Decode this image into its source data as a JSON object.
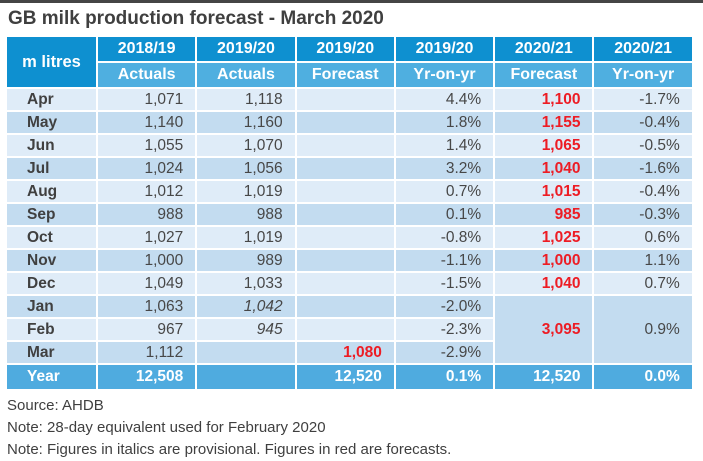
{
  "title": "GB milk production forecast - March 2020",
  "colors": {
    "header_year_row": "#0e90d0",
    "header_sub_row": "#4fafe0",
    "unit_cell": "#1d9ad6",
    "row_light": "#dfecf8",
    "row_medium": "#c3dcf0",
    "total_row": "#4fabdf",
    "forecast_red": "#ed1c24",
    "body_text": "#474747"
  },
  "table": {
    "unit_label": "m litres",
    "col_groups": [
      {
        "year": "2018/19",
        "sub": "Actuals"
      },
      {
        "year": "2019/20",
        "sub": "Actuals"
      },
      {
        "year": "2019/20",
        "sub": "Forecast"
      },
      {
        "year": "2019/20",
        "sub": "Yr-on-yr"
      },
      {
        "year": "2020/21",
        "sub": "Forecast"
      },
      {
        "year": "2020/21",
        "sub": "Yr-on-yr"
      }
    ],
    "rows": [
      {
        "month": "Apr",
        "cells": [
          {
            "v": "1,071"
          },
          {
            "v": "1,118"
          },
          {
            "v": ""
          },
          {
            "v": "4.4%"
          },
          {
            "v": "1,100",
            "forecast": true
          },
          {
            "v": "-1.7%"
          }
        ]
      },
      {
        "month": "May",
        "cells": [
          {
            "v": "1,140"
          },
          {
            "v": "1,160"
          },
          {
            "v": ""
          },
          {
            "v": "1.8%"
          },
          {
            "v": "1,155",
            "forecast": true
          },
          {
            "v": "-0.4%"
          }
        ]
      },
      {
        "month": "Jun",
        "cells": [
          {
            "v": "1,055"
          },
          {
            "v": "1,070"
          },
          {
            "v": ""
          },
          {
            "v": "1.4%"
          },
          {
            "v": "1,065",
            "forecast": true
          },
          {
            "v": "-0.5%"
          }
        ]
      },
      {
        "month": "Jul",
        "cells": [
          {
            "v": "1,024"
          },
          {
            "v": "1,056"
          },
          {
            "v": ""
          },
          {
            "v": "3.2%"
          },
          {
            "v": "1,040",
            "forecast": true
          },
          {
            "v": "-1.6%"
          }
        ]
      },
      {
        "month": "Aug",
        "cells": [
          {
            "v": "1,012"
          },
          {
            "v": "1,019"
          },
          {
            "v": ""
          },
          {
            "v": "0.7%"
          },
          {
            "v": "1,015",
            "forecast": true
          },
          {
            "v": "-0.4%"
          }
        ]
      },
      {
        "month": "Sep",
        "cells": [
          {
            "v": "988"
          },
          {
            "v": "988"
          },
          {
            "v": ""
          },
          {
            "v": "0.1%"
          },
          {
            "v": "985",
            "forecast": true
          },
          {
            "v": "-0.3%"
          }
        ]
      },
      {
        "month": "Oct",
        "cells": [
          {
            "v": "1,027"
          },
          {
            "v": "1,019"
          },
          {
            "v": ""
          },
          {
            "v": "-0.8%"
          },
          {
            "v": "1,025",
            "forecast": true
          },
          {
            "v": "0.6%"
          }
        ]
      },
      {
        "month": "Nov",
        "cells": [
          {
            "v": "1,000"
          },
          {
            "v": "989"
          },
          {
            "v": ""
          },
          {
            "v": "-1.1%"
          },
          {
            "v": "1,000",
            "forecast": true
          },
          {
            "v": "1.1%"
          }
        ]
      },
      {
        "month": "Dec",
        "cells": [
          {
            "v": "1,049"
          },
          {
            "v": "1,033"
          },
          {
            "v": ""
          },
          {
            "v": "-1.5%"
          },
          {
            "v": "1,040",
            "forecast": true
          },
          {
            "v": "0.7%"
          }
        ]
      },
      {
        "month": "Jan",
        "cells": [
          {
            "v": "1,063"
          },
          {
            "v": "1,042",
            "provisional": true
          },
          {
            "v": ""
          },
          {
            "v": "-2.0%"
          }
        ],
        "merged_start": true
      },
      {
        "month": "Feb",
        "cells": [
          {
            "v": "967"
          },
          {
            "v": "945",
            "provisional": true
          },
          {
            "v": ""
          },
          {
            "v": "-2.3%"
          }
        ]
      },
      {
        "month": "Mar",
        "cells": [
          {
            "v": "1,112"
          },
          {
            "v": ""
          },
          {
            "v": "1,080",
            "forecast": true
          },
          {
            "v": "-2.9%"
          }
        ]
      }
    ],
    "merged_cell": {
      "rowspan": 3,
      "forecast": {
        "v": "3,095",
        "forecast": true
      },
      "yoy": {
        "v": "0.9%"
      }
    },
    "total_row": {
      "label": "Year",
      "cells": [
        "12,508",
        "",
        "12,520",
        "0.1%",
        "12,520",
        "0.0%"
      ]
    }
  },
  "notes": [
    "Source: AHDB",
    "Note: 28-day equivalent used for February 2020",
    "Note: Figures in italics are provisional. Figures in red are forecasts."
  ],
  "chart_data": {
    "type": "table",
    "title": "GB milk production forecast - March 2020",
    "unit": "m litres",
    "columns": [
      "Month",
      "2018/19 Actuals",
      "2019/20 Actuals",
      "2019/20 Forecast",
      "2019/20 Yr-on-yr",
      "2020/21 Forecast",
      "2020/21 Yr-on-yr"
    ],
    "rows": [
      [
        "Apr",
        1071,
        1118,
        null,
        "4.4%",
        1100,
        "-1.7%"
      ],
      [
        "May",
        1140,
        1160,
        null,
        "1.8%",
        1155,
        "-0.4%"
      ],
      [
        "Jun",
        1055,
        1070,
        null,
        "1.4%",
        1065,
        "-0.5%"
      ],
      [
        "Jul",
        1024,
        1056,
        null,
        "3.2%",
        1040,
        "-1.6%"
      ],
      [
        "Aug",
        1012,
        1019,
        null,
        "0.7%",
        1015,
        "-0.4%"
      ],
      [
        "Sep",
        988,
        988,
        null,
        "0.1%",
        985,
        "-0.3%"
      ],
      [
        "Oct",
        1027,
        1019,
        null,
        "-0.8%",
        1025,
        "0.6%"
      ],
      [
        "Nov",
        1000,
        989,
        null,
        "-1.1%",
        1000,
        "1.1%"
      ],
      [
        "Dec",
        1049,
        1033,
        null,
        "-1.5%",
        1040,
        "0.7%"
      ],
      [
        "Jan",
        1063,
        1042,
        null,
        "-2.0%",
        3095,
        "0.9%"
      ],
      [
        "Feb",
        967,
        945,
        null,
        "-2.3%",
        3095,
        "0.9%"
      ],
      [
        "Mar",
        1112,
        null,
        1080,
        "-2.9%",
        3095,
        "0.9%"
      ],
      [
        "Year",
        12508,
        null,
        12520,
        "0.1%",
        12520,
        "0.0%"
      ]
    ],
    "layout_hints": {
      "jan_to_mar_2020_21": "3,095 forecast and 0.9% yr-on-yr shown once in a cell merged across Jan, Feb and Mar rows",
      "provisional_italic": [
        "2019/20 Jan 1,042",
        "2019/20 Feb 945"
      ],
      "red_forecast_values": "all 2020/21 forecasts, 2019/20 Mar forecast 1,080, merged 3,095"
    }
  }
}
